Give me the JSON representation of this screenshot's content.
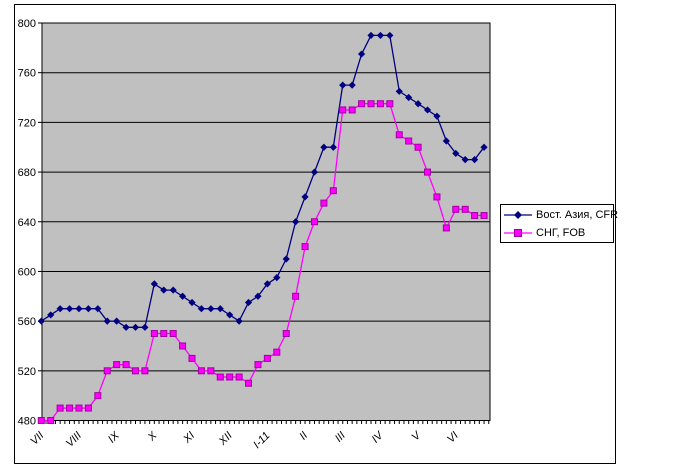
{
  "page": {
    "background": "#ffffff"
  },
  "chart": {
    "plot_bg": "#c0c0c0",
    "grid_color": "#000000",
    "frame_border_color": "#000000",
    "axis_text_color": "#000000"
  },
  "legend": {
    "entries": [
      {
        "label": "Вост. Азия, CFR",
        "color": "#000080",
        "marker": "diamond"
      },
      {
        "label": "СНГ, FOB",
        "color": "#ff00ff",
        "marker": "square"
      }
    ]
  },
  "chart_data": {
    "type": "line",
    "title": "",
    "xlabel": "",
    "ylabel": "",
    "grid": "horizontal",
    "legend_position": "right",
    "x_axis": {
      "month_labels": [
        "VII",
        "VIII",
        "IX",
        "X",
        "XI",
        "XII",
        "I-11",
        "II",
        "III",
        "IV",
        "V",
        "VI"
      ],
      "points_per_month": 4
    },
    "y_axis": {
      "min": 480,
      "max": 800,
      "tick_step": 40,
      "tick_labels": [
        480,
        520,
        560,
        600,
        640,
        680,
        720,
        760,
        800
      ]
    },
    "series": [
      {
        "name": "Вост. Азия, CFR",
        "color": "#000080",
        "marker": "diamond",
        "values": [
          560,
          565,
          570,
          570,
          570,
          570,
          570,
          560,
          560,
          555,
          555,
          555,
          590,
          585,
          585,
          580,
          575,
          570,
          570,
          570,
          565,
          560,
          575,
          580,
          590,
          595,
          610,
          640,
          660,
          680,
          700,
          700,
          750,
          750,
          775,
          790,
          790,
          790,
          745,
          740,
          735,
          730,
          725,
          705,
          695,
          690,
          690,
          700
        ]
      },
      {
        "name": "СНГ, FOB",
        "color": "#ff00ff",
        "marker": "square",
        "marker_edge": "#a000a0",
        "values": [
          480,
          480,
          490,
          490,
          490,
          490,
          500,
          520,
          525,
          525,
          520,
          520,
          550,
          550,
          550,
          540,
          530,
          520,
          520,
          515,
          515,
          515,
          510,
          525,
          530,
          535,
          550,
          580,
          620,
          640,
          655,
          665,
          730,
          730,
          735,
          735,
          735,
          735,
          710,
          705,
          700,
          680,
          660,
          635,
          650,
          650,
          645,
          645
        ]
      }
    ]
  }
}
